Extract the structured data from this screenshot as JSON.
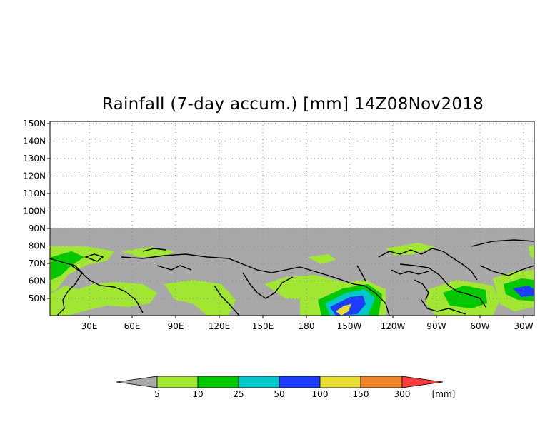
{
  "title": "Rainfall (7-day accum.) [mm] 14Z08Nov2018",
  "map": {
    "lat_ticks": [
      "150N",
      "140N",
      "130N",
      "120N",
      "110N",
      "100N",
      "90N",
      "80N",
      "70N",
      "60N",
      "50N"
    ],
    "lon_ticks": [
      "30E",
      "60E",
      "90E",
      "120E",
      "150E",
      "180",
      "150W",
      "120W",
      "90W",
      "60W",
      "30W"
    ],
    "no_data_color": "#a8a8a8",
    "grid": "dotted"
  },
  "legend": {
    "levels": [
      "5",
      "10",
      "25",
      "50",
      "100",
      "150",
      "300"
    ],
    "unit": "[mm]",
    "colors": [
      "#a8a8a8",
      "#a0e632",
      "#00c800",
      "#00c8c8",
      "#1e3cff",
      "#e6dc32",
      "#f08228",
      "#fa3c3c"
    ]
  }
}
